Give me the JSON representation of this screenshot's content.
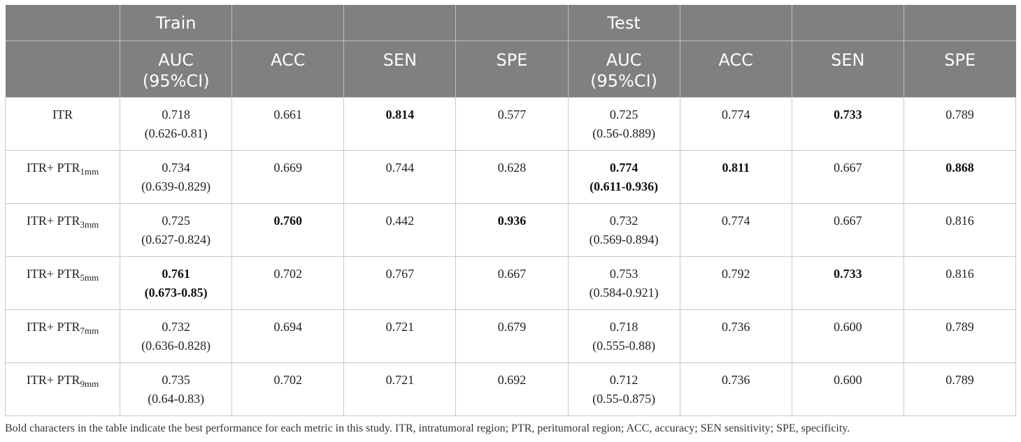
{
  "table": {
    "group_headers": [
      {
        "label": "",
        "span": 1
      },
      {
        "label": "Train",
        "span": 1
      },
      {
        "label": "",
        "span": 1
      },
      {
        "label": "",
        "span": 1
      },
      {
        "label": "",
        "span": 1
      },
      {
        "label": "Test",
        "span": 1
      },
      {
        "label": "",
        "span": 1
      },
      {
        "label": "",
        "span": 1
      },
      {
        "label": "",
        "span": 1
      }
    ],
    "column_headers": [
      {
        "line1": "",
        "line2": ""
      },
      {
        "line1": "AUC",
        "line2": "(95%CI)"
      },
      {
        "line1": "ACC",
        "line2": ""
      },
      {
        "line1": "SEN",
        "line2": ""
      },
      {
        "line1": "SPE",
        "line2": ""
      },
      {
        "line1": "AUC",
        "line2": "(95%CI)"
      },
      {
        "line1": "ACC",
        "line2": ""
      },
      {
        "line1": "SEN",
        "line2": ""
      },
      {
        "line1": "SPE",
        "line2": ""
      }
    ],
    "rows": [
      {
        "label": "ITR",
        "label_sub": "",
        "cells": [
          {
            "value": "0.718",
            "ci": "(0.626-0.81)",
            "bold": false
          },
          {
            "value": "0.661",
            "ci": "",
            "bold": false
          },
          {
            "value": "0.814",
            "ci": "",
            "bold": true
          },
          {
            "value": "0.577",
            "ci": "",
            "bold": false
          },
          {
            "value": "0.725",
            "ci": "(0.56-0.889)",
            "bold": false
          },
          {
            "value": "0.774",
            "ci": "",
            "bold": false
          },
          {
            "value": "0.733",
            "ci": "",
            "bold": true
          },
          {
            "value": "0.789",
            "ci": "",
            "bold": false
          }
        ]
      },
      {
        "label": "ITR+ PTR",
        "label_sub": "1mm",
        "cells": [
          {
            "value": "0.734",
            "ci": "(0.639-0.829)",
            "bold": false
          },
          {
            "value": "0.669",
            "ci": "",
            "bold": false
          },
          {
            "value": "0.744",
            "ci": "",
            "bold": false
          },
          {
            "value": "0.628",
            "ci": "",
            "bold": false
          },
          {
            "value": "0.774",
            "ci": "(0.611-0.936)",
            "bold": true
          },
          {
            "value": "0.811",
            "ci": "",
            "bold": true
          },
          {
            "value": "0.667",
            "ci": "",
            "bold": false
          },
          {
            "value": "0.868",
            "ci": "",
            "bold": true
          }
        ]
      },
      {
        "label": "ITR+ PTR",
        "label_sub": "3mm",
        "cells": [
          {
            "value": "0.725",
            "ci": "(0.627-0.824)",
            "bold": false
          },
          {
            "value": "0.760",
            "ci": "",
            "bold": true
          },
          {
            "value": "0.442",
            "ci": "",
            "bold": false
          },
          {
            "value": "0.936",
            "ci": "",
            "bold": true
          },
          {
            "value": "0.732",
            "ci": "(0.569-0.894)",
            "bold": false
          },
          {
            "value": "0.774",
            "ci": "",
            "bold": false
          },
          {
            "value": "0.667",
            "ci": "",
            "bold": false
          },
          {
            "value": "0.816",
            "ci": "",
            "bold": false
          }
        ]
      },
      {
        "label": "ITR+ PTR",
        "label_sub": "5mm",
        "cells": [
          {
            "value": "0.761",
            "ci": "(0.673-0.85)",
            "bold": true
          },
          {
            "value": "0.702",
            "ci": "",
            "bold": false
          },
          {
            "value": "0.767",
            "ci": "",
            "bold": false
          },
          {
            "value": "0.667",
            "ci": "",
            "bold": false
          },
          {
            "value": "0.753",
            "ci": "(0.584-0.921)",
            "bold": false
          },
          {
            "value": "0.792",
            "ci": "",
            "bold": false
          },
          {
            "value": "0.733",
            "ci": "",
            "bold": true
          },
          {
            "value": "0.816",
            "ci": "",
            "bold": false
          }
        ]
      },
      {
        "label": "ITR+ PTR",
        "label_sub": "7mm",
        "cells": [
          {
            "value": "0.732",
            "ci": "(0.636-0.828)",
            "bold": false
          },
          {
            "value": "0.694",
            "ci": "",
            "bold": false
          },
          {
            "value": "0.721",
            "ci": "",
            "bold": false
          },
          {
            "value": "0.679",
            "ci": "",
            "bold": false
          },
          {
            "value": "0.718",
            "ci": "(0.555-0.88)",
            "bold": false
          },
          {
            "value": "0.736",
            "ci": "",
            "bold": false
          },
          {
            "value": "0.600",
            "ci": "",
            "bold": false
          },
          {
            "value": "0.789",
            "ci": "",
            "bold": false
          }
        ]
      },
      {
        "label": "ITR+ PTR",
        "label_sub": "9mm",
        "cells": [
          {
            "value": "0.735",
            "ci": "(0.64-0.83)",
            "bold": false
          },
          {
            "value": "0.702",
            "ci": "",
            "bold": false
          },
          {
            "value": "0.721",
            "ci": "",
            "bold": false
          },
          {
            "value": "0.692",
            "ci": "",
            "bold": false
          },
          {
            "value": "0.712",
            "ci": "(0.55-0.875)",
            "bold": false
          },
          {
            "value": "0.736",
            "ci": "",
            "bold": false
          },
          {
            "value": "0.600",
            "ci": "",
            "bold": false
          },
          {
            "value": "0.789",
            "ci": "",
            "bold": false
          }
        ]
      }
    ]
  },
  "footnote": "Bold characters in the table indicate the best performance for each metric in this study. ITR, intratumoral region; PTR, peritumoral region; ACC, accuracy; SEN sensitivity; SPE, specificity.",
  "colors": {
    "header_bg": "#808080",
    "header_text": "#ffffff",
    "grid": "#c8c8c8"
  }
}
